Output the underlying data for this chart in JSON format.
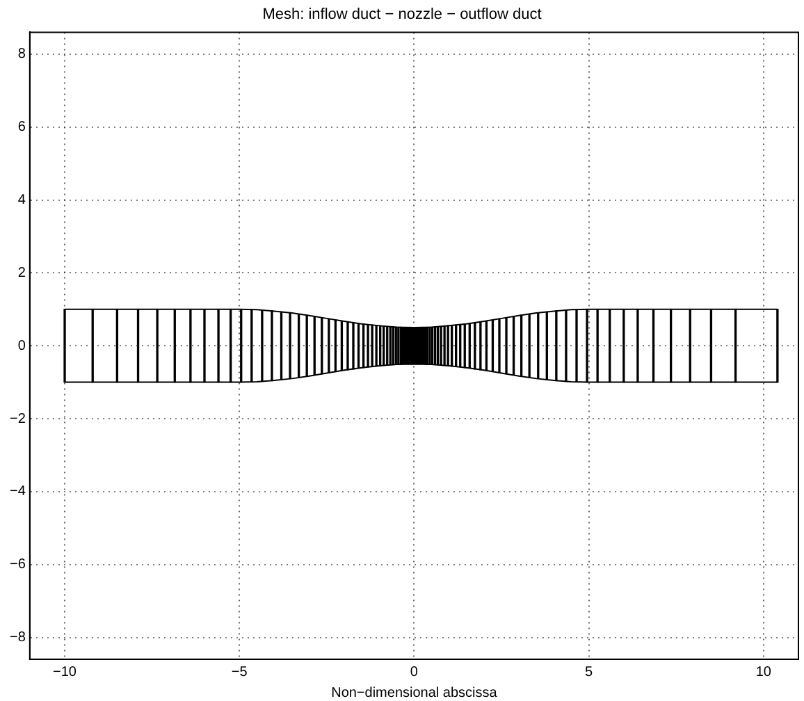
{
  "chart_data": {
    "type": "line",
    "title": "Mesh: inflow duct − nozzle − outflow duct",
    "xlabel": "Non−dimensional abscissa",
    "xlim": [
      -11,
      11
    ],
    "ylim": [
      -8.6,
      8.6
    ],
    "xticks": [
      {
        "value": -10,
        "label": "−10"
      },
      {
        "value": -5,
        "label": "−5"
      },
      0,
      5,
      10
    ],
    "yticks": [
      {
        "value": -8,
        "label": "−8"
      },
      {
        "value": -6,
        "label": "−6"
      },
      {
        "value": -4,
        "label": "−4"
      },
      {
        "value": -2,
        "label": "−2"
      },
      0,
      2,
      4,
      6,
      8
    ],
    "grid": true,
    "legend": false,
    "marker": "none",
    "line_style": "solid",
    "series": [
      {
        "color": "#000000",
        "x": [
          -10,
          -5,
          -4.5,
          -4,
          -3.5,
          -3,
          -2.5,
          -2,
          -1.5,
          -1,
          -0.5,
          0,
          0.5,
          1,
          1.5,
          2,
          2.5,
          3,
          3.5,
          4,
          4.5,
          5,
          10.4
        ],
        "values": [
          1,
          1,
          0.99,
          0.95,
          0.9,
          0.83,
          0.75,
          0.67,
          0.6,
          0.55,
          0.51,
          0.5,
          0.51,
          0.55,
          0.6,
          0.67,
          0.75,
          0.83,
          0.9,
          0.95,
          0.99,
          1,
          1
        ]
      },
      {
        "color": "#000000",
        "x": [
          -10,
          -5,
          -4.5,
          -4,
          -3.5,
          -3,
          -2.5,
          -2,
          -1.5,
          -1,
          -0.5,
          0,
          0.5,
          1,
          1.5,
          2,
          2.5,
          3,
          3.5,
          4,
          4.5,
          5,
          10.4
        ],
        "values": [
          -1,
          -1,
          -0.99,
          -0.95,
          -0.9,
          -0.83,
          -0.75,
          -0.67,
          -0.6,
          -0.55,
          -0.51,
          -0.5,
          -0.51,
          -0.55,
          -0.6,
          -0.67,
          -0.75,
          -0.83,
          -0.9,
          -0.95,
          -0.99,
          -1,
          -1
        ]
      },
      {
        "type": "bar",
        "color": "#000000",
        "x": [
          -10,
          -9.2,
          -8.5,
          -7.9,
          -7.35,
          -6.85,
          -6.4,
          -6,
          -5.6,
          -5.25,
          -4.95,
          -4.65,
          -4.35,
          -4.07,
          -3.8,
          -3.55,
          -3.3,
          -3.07,
          -2.85,
          -2.64,
          -2.44,
          -2.25,
          -2.07,
          -1.9,
          -1.74,
          -1.59,
          -1.45,
          -1.32,
          -1.2,
          -1.08,
          -0.97,
          -0.87,
          -0.77,
          -0.68,
          -0.6,
          -0.52,
          -0.45,
          -0.38,
          -0.32,
          -0.26,
          -0.2,
          -0.15,
          -0.1,
          -0.05,
          0,
          0.05,
          0.1,
          0.15,
          0.2,
          0.26,
          0.32,
          0.38,
          0.45,
          0.52,
          0.6,
          0.68,
          0.77,
          0.87,
          0.97,
          1.08,
          1.2,
          1.32,
          1.45,
          1.59,
          1.74,
          1.9,
          2.07,
          2.25,
          2.44,
          2.64,
          2.85,
          3.07,
          3.3,
          3.55,
          3.8,
          4.07,
          4.35,
          4.65,
          4.95,
          5.25,
          5.6,
          6,
          6.4,
          6.85,
          7.35,
          7.9,
          8.5,
          9.2,
          10.4
        ],
        "base": [
          -1,
          -1,
          -1,
          -1,
          -1,
          -1,
          -1,
          -1,
          -1,
          -1,
          -1,
          -0.99,
          -0.98,
          -0.96,
          -0.93,
          -0.9,
          -0.87,
          -0.84,
          -0.8,
          -0.77,
          -0.74,
          -0.71,
          -0.68,
          -0.66,
          -0.64,
          -0.61,
          -0.6,
          -0.58,
          -0.57,
          -0.56,
          -0.55,
          -0.54,
          -0.53,
          -0.52,
          -0.52,
          -0.51,
          -0.51,
          -0.51,
          -0.5,
          -0.5,
          -0.5,
          -0.5,
          -0.5,
          -0.5,
          -0.5,
          -0.5,
          -0.5,
          -0.5,
          -0.5,
          -0.5,
          -0.5,
          -0.51,
          -0.51,
          -0.51,
          -0.52,
          -0.52,
          -0.53,
          -0.54,
          -0.55,
          -0.56,
          -0.57,
          -0.58,
          -0.6,
          -0.61,
          -0.64,
          -0.66,
          -0.68,
          -0.71,
          -0.74,
          -0.77,
          -0.8,
          -0.84,
          -0.87,
          -0.9,
          -0.93,
          -0.96,
          -0.98,
          -0.99,
          -1,
          -1,
          -1,
          -1,
          -1,
          -1,
          -1,
          -1,
          -1,
          -1,
          -1
        ],
        "values": [
          2,
          2,
          2,
          2,
          2,
          2,
          2,
          2,
          2,
          2,
          2,
          1.98,
          1.96,
          1.92,
          1.86,
          1.8,
          1.74,
          1.68,
          1.6,
          1.54,
          1.48,
          1.42,
          1.36,
          1.32,
          1.28,
          1.22,
          1.2,
          1.16,
          1.14,
          1.12,
          1.1,
          1.08,
          1.06,
          1.04,
          1.04,
          1.02,
          1.02,
          1.02,
          1,
          1,
          1,
          1,
          1,
          1,
          1,
          1,
          1,
          1,
          1,
          1,
          1,
          1.02,
          1.02,
          1.02,
          1.04,
          1.04,
          1.06,
          1.08,
          1.1,
          1.12,
          1.14,
          1.16,
          1.2,
          1.22,
          1.28,
          1.32,
          1.36,
          1.42,
          1.48,
          1.54,
          1.6,
          1.68,
          1.74,
          1.8,
          1.86,
          1.92,
          1.96,
          1.98,
          2,
          2,
          2,
          2,
          2,
          2,
          2,
          2,
          2,
          2,
          2
        ]
      }
    ]
  }
}
